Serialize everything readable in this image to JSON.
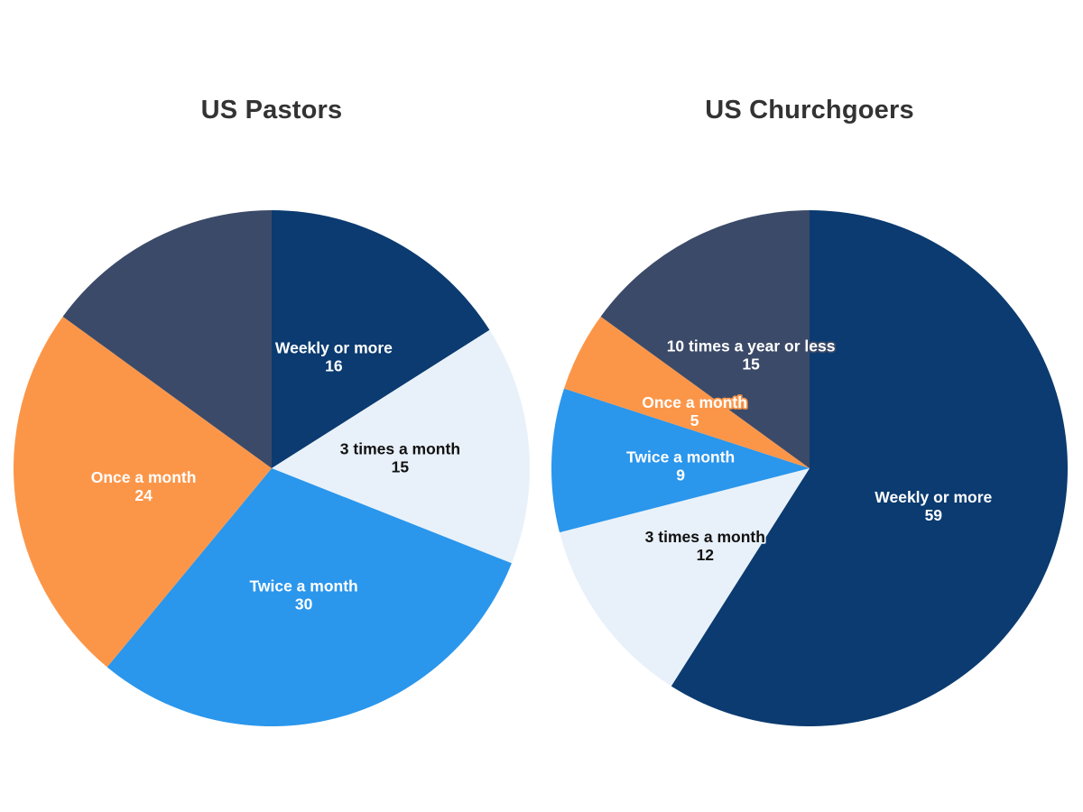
{
  "page": {
    "background_color": "#ffffff",
    "title_color": "#333333"
  },
  "chart_data": [
    {
      "type": "pie",
      "title": "US Pastors",
      "center": [
        301,
        519
      ],
      "radius": 286,
      "start_angle_deg": 0,
      "direction": "clockwise",
      "label_radius_fraction": 0.5,
      "legend": "none",
      "slices": [
        {
          "label": "Weekly or more",
          "value": 16,
          "color": "#0B3B70",
          "label_color": "#ffffff",
          "show_label": true
        },
        {
          "label": "3 times a month",
          "value": 15,
          "color": "#E8F1F9",
          "label_color": "#121212",
          "show_label": true
        },
        {
          "label": "Twice a month",
          "value": 30,
          "color": "#2A96EC",
          "label_color": "#ffffff",
          "show_label": true
        },
        {
          "label": "Once a month",
          "value": 24,
          "color": "#FB9649",
          "label_color": "#ffffff",
          "show_label": true
        },
        {
          "label": "",
          "value": 15,
          "color": "#3B4A68",
          "label_color": "#ffffff",
          "show_label": false
        }
      ]
    },
    {
      "type": "pie",
      "title": "US Churchgoers",
      "center": [
        897,
        519
      ],
      "radius": 286,
      "start_angle_deg": 0,
      "direction": "clockwise",
      "label_radius_fraction": 0.5,
      "legend": "none",
      "slices": [
        {
          "label": "Weekly or more",
          "value": 59,
          "color": "#0B3B70",
          "label_color": "#ffffff",
          "show_label": true
        },
        {
          "label": "3 times a month",
          "value": 12,
          "color": "#E8F1F9",
          "label_color": "#121212",
          "show_label": true
        },
        {
          "label": "Twice a month",
          "value": 9,
          "color": "#2A96EC",
          "label_color": "#ffffff",
          "show_label": true
        },
        {
          "label": "Once a month",
          "value": 5,
          "color": "#FB9649",
          "label_color": "#ffffff",
          "show_label": true
        },
        {
          "label": "10 times a year or less",
          "value": 15,
          "color": "#3B4A68",
          "label_color": "#ffffff",
          "show_label": true
        }
      ]
    }
  ]
}
